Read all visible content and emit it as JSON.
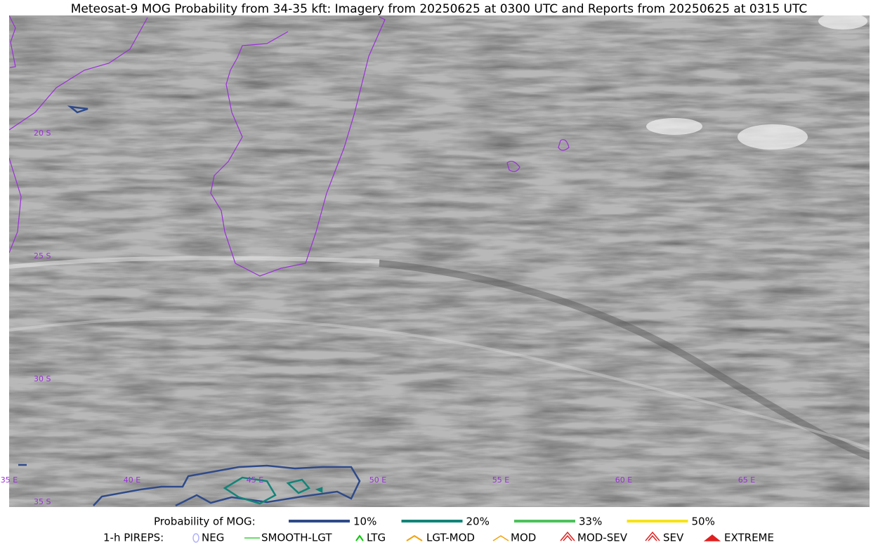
{
  "title": "Meteosat-9 MOG Probability from 34-35 kft: Imagery from 20250625 at 0300 UTC and Reports from 20250625 at 0315 UTC",
  "grid_labels": {
    "lat": [
      "20 S",
      "25 S",
      "30 S",
      "35 S"
    ],
    "lon": [
      "35 E",
      "40 E",
      "45 E",
      "50 E",
      "55 E",
      "60 E",
      "65 E"
    ]
  },
  "legend": {
    "probability": {
      "label": "Probability of MOG:",
      "items": [
        {
          "name": "10%",
          "color": "#2e4a8a"
        },
        {
          "name": "20%",
          "color": "#128478"
        },
        {
          "name": "33%",
          "color": "#4cc25a"
        },
        {
          "name": "50%",
          "color": "#f6e21a"
        }
      ]
    },
    "pireps": {
      "label": "1-h PIREPS:",
      "items": [
        "NEG",
        "SMOOTH-LGT",
        "LTG",
        "LGT-MOD",
        "MOD",
        "MOD-SEV",
        "SEV",
        "EXTREME"
      ]
    }
  }
}
